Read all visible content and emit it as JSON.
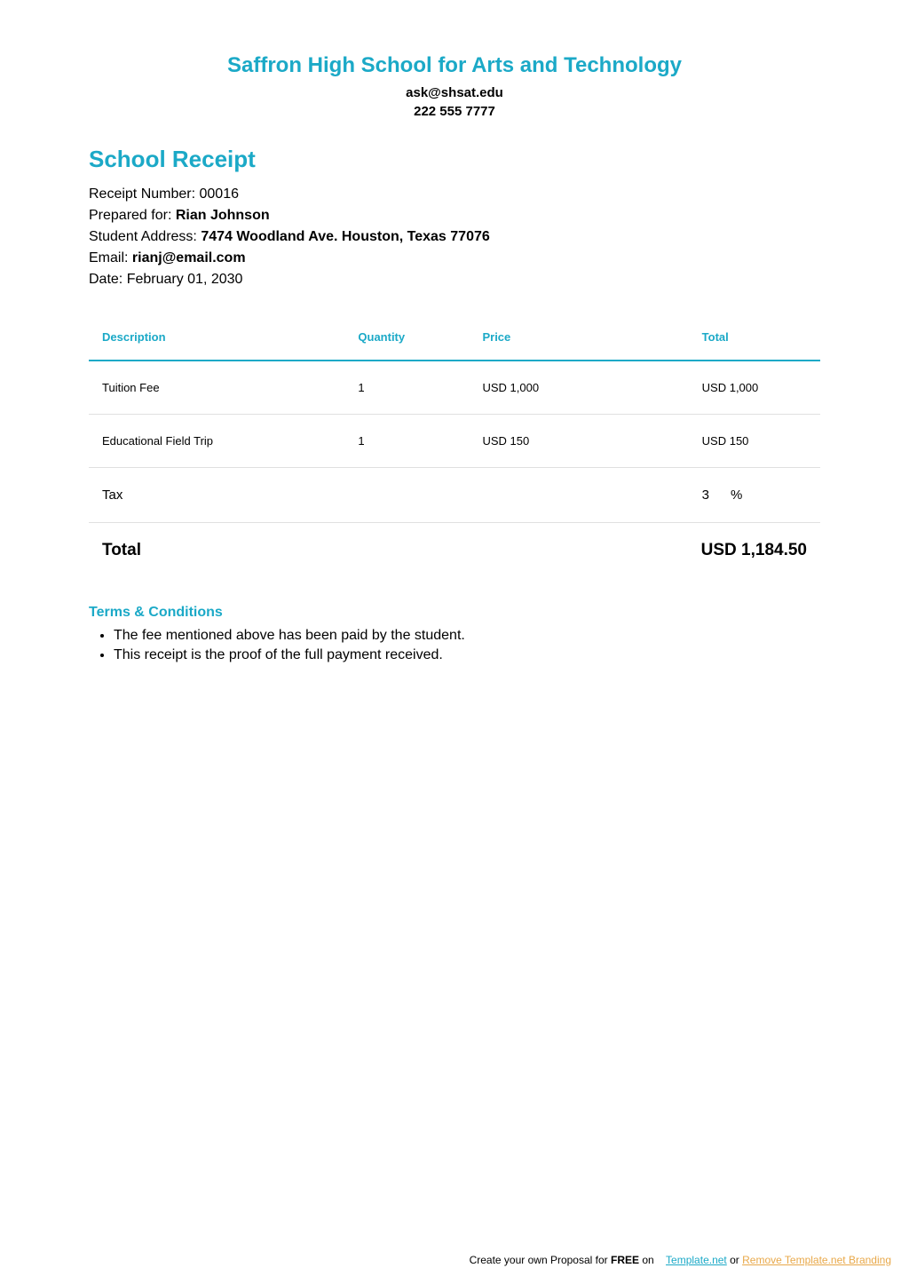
{
  "header": {
    "school_name": "Saffron High School for Arts and Technology",
    "email": "ask@shsat.edu",
    "phone": "222 555 7777"
  },
  "receipt": {
    "title": "School Receipt",
    "number_label": "Receipt Number: ",
    "number_value": "00016",
    "prepared_for_label": "Prepared for: ",
    "prepared_for_value": "Rian Johnson",
    "address_label": "Student Address: ",
    "address_value": "7474 Woodland Ave. Houston, Texas 77076",
    "email_label": "Email: ",
    "email_value": "rianj@email.com",
    "date_label": "Date: ",
    "date_value": "February 01, 2030"
  },
  "table": {
    "columns": {
      "description": "Description",
      "quantity": "Quantity",
      "price": "Price",
      "total": "Total"
    },
    "rows": [
      {
        "description": "Tuition Fee",
        "quantity": "1",
        "price": "USD 1,000",
        "total": "USD 1,000"
      },
      {
        "description": "Educational Field Trip",
        "quantity": "1",
        "price": "USD 150",
        "total": "USD 150"
      }
    ],
    "tax_label": "Tax",
    "tax_value": "3",
    "tax_symbol": "%",
    "total_label": "Total",
    "total_value": "USD 1,184.50"
  },
  "terms": {
    "title": "Terms & Conditions",
    "items": [
      "The fee mentioned above has been paid by the student.",
      "This receipt is the proof of the full payment received."
    ]
  },
  "footer": {
    "text1": "Create your own Proposal for ",
    "text2": "FREE",
    "text3": " on",
    "link1": "Template.net",
    "text4": "  or  ",
    "link2": "Remove Template.net Branding"
  },
  "colors": {
    "accent": "#1ba9c7",
    "footer_link2": "#e8a849",
    "border_light": "#e0e0e0",
    "text": "#000000",
    "background": "#ffffff"
  }
}
